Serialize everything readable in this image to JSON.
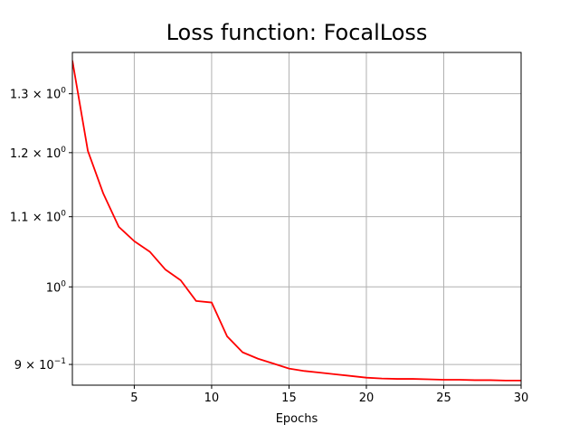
{
  "chart_data": {
    "type": "line",
    "title": "Loss function: FocalLoss",
    "xlabel": "Epochs",
    "ylabel": "",
    "xlim": [
      1,
      30
    ],
    "ylim": [
      0.875,
      1.375
    ],
    "y_scale": "log",
    "grid": true,
    "x_ticks": [
      5,
      10,
      15,
      20,
      25,
      30
    ],
    "y_ticks": [
      {
        "value": 0.9,
        "mantissa": "9",
        "base": "10",
        "exp": "−1"
      },
      {
        "value": 1.0,
        "mantissa": "",
        "base": "10",
        "exp": "0"
      },
      {
        "value": 1.1,
        "mantissa": "1.1",
        "base": "10",
        "exp": "0"
      },
      {
        "value": 1.2,
        "mantissa": "1.2",
        "base": "10",
        "exp": "0"
      },
      {
        "value": 1.3,
        "mantissa": "1.3",
        "base": "10",
        "exp": "0"
      }
    ],
    "series": [
      {
        "color": "#ff0000",
        "x": [
          1,
          2,
          3,
          4,
          5,
          6,
          7,
          8,
          9,
          10,
          11,
          12,
          13,
          14,
          15,
          16,
          17,
          18,
          19,
          20,
          21,
          22,
          23,
          24,
          25,
          26,
          27,
          28,
          29,
          30
        ],
        "y": [
          1.36,
          1.203,
          1.135,
          1.085,
          1.064,
          1.049,
          1.024,
          1.009,
          0.981,
          0.979,
          0.935,
          0.915,
          0.907,
          0.901,
          0.895,
          0.892,
          0.89,
          0.888,
          0.886,
          0.884,
          0.883,
          0.8825,
          0.8825,
          0.882,
          0.8815,
          0.8815,
          0.881,
          0.881,
          0.8805,
          0.8805
        ]
      }
    ]
  }
}
